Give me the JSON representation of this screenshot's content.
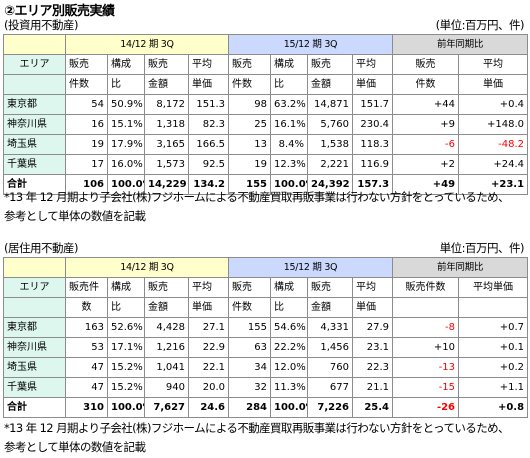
{
  "title": "②エリア別販売実績",
  "unit_label": "(単位:百万円、件)",
  "unit_label2": "単位:百万円、件)",
  "sections": [
    {
      "subtitle": "(投資用不動産)",
      "period_cur": "14/12 期 3Q",
      "period_prev": "15/12 期 3Q",
      "yoy": "前年同期比",
      "area_label": "エリア",
      "cols_cur": [
        [
          "販売",
          "件数"
        ],
        [
          "構成",
          "比"
        ],
        [
          "販売",
          "金額"
        ],
        [
          "平均",
          "単価"
        ]
      ],
      "cols_prev": [
        [
          "販売",
          "件数"
        ],
        [
          "構成",
          "比"
        ],
        [
          "販売",
          "金額"
        ],
        [
          "平均",
          "単価"
        ]
      ],
      "cols_yoy": [
        [
          "販売",
          "件数"
        ],
        [
          "平均",
          "単価"
        ]
      ],
      "rows": [
        {
          "area": "東京都",
          "a": "54",
          "b": "50.9%",
          "c": "8,172",
          "d": "151.3",
          "e": "98",
          "f": "63.2%",
          "g": "14,871",
          "h": "151.7",
          "i": "+44",
          "j": "+0.4",
          "i_red": false,
          "j_red": false
        },
        {
          "area": "神奈川県",
          "a": "16",
          "b": "15.1%",
          "c": "1,318",
          "d": "82.3",
          "e": "25",
          "f": "16.1%",
          "g": "5,760",
          "h": "230.4",
          "i": "+9",
          "j": "+148.0",
          "i_red": false,
          "j_red": false
        },
        {
          "area": "埼玉県",
          "a": "19",
          "b": "17.9%",
          "c": "3,165",
          "d": "166.5",
          "e": "13",
          "f": "8.4%",
          "g": "1,538",
          "h": "118.3",
          "i": "-6",
          "j": "-48.2",
          "i_red": true,
          "j_red": true
        },
        {
          "area": "千葉県",
          "a": "17",
          "b": "16.0%",
          "c": "1,573",
          "d": "92.5",
          "e": "19",
          "f": "12.3%",
          "g": "2,221",
          "h": "116.9",
          "i": "+2",
          "j": "+24.4",
          "i_red": false,
          "j_red": false
        }
      ],
      "total": {
        "area": "合計",
        "a": "106",
        "b": "100.0%",
        "c": "14,229",
        "d": "134.2",
        "e": "155",
        "f": "100.0%",
        "g": "24,392",
        "h": "157.3",
        "i": "+49",
        "j": "+23.1"
      },
      "note1": "*13 年 12 月期より子会社(株)フジホームによる不動産買取再販事業は行わない方針をとっているため、",
      "note2": "参考として単体の数値を記載"
    },
    {
      "subtitle": "(居住用不動産)",
      "period_cur": "14/12 期 3Q",
      "period_prev": "15/12 期 3Q",
      "yoy": "前年同期比",
      "area_label": "エリア",
      "cols_cur": [
        [
          "販売件",
          "数"
        ],
        [
          "構成",
          "比"
        ],
        [
          "販売",
          "金額"
        ],
        [
          "平均",
          "単価"
        ]
      ],
      "cols_prev": [
        [
          "販売",
          "件数"
        ],
        [
          "構成",
          "比"
        ],
        [
          "販売",
          "金額"
        ],
        [
          "平均",
          "単価"
        ]
      ],
      "cols_yoy": [
        [
          "販売件数",
          ""
        ],
        [
          "平均単価",
          ""
        ]
      ],
      "rows": [
        {
          "area": "東京都",
          "a": "163",
          "b": "52.6%",
          "c": "4,428",
          "d": "27.1",
          "e": "155",
          "f": "54.6%",
          "g": "4,331",
          "h": "27.9",
          "i": "-8",
          "j": "+0.7",
          "i_red": true,
          "j_red": false
        },
        {
          "area": "神奈川県",
          "a": "53",
          "b": "17.1%",
          "c": "1,216",
          "d": "22.9",
          "e": "63",
          "f": "22.2%",
          "g": "1,456",
          "h": "23.1",
          "i": "+10",
          "j": "+0.1",
          "i_red": false,
          "j_red": false
        },
        {
          "area": "埼玉県",
          "a": "47",
          "b": "15.2%",
          "c": "1,041",
          "d": "22.1",
          "e": "34",
          "f": "12.0%",
          "g": "760",
          "h": "22.3",
          "i": "-13",
          "j": "+0.2",
          "i_red": true,
          "j_red": false
        },
        {
          "area": "千葉県",
          "a": "47",
          "b": "15.2%",
          "c": "940",
          "d": "20.0",
          "e": "32",
          "f": "11.3%",
          "g": "677",
          "h": "21.1",
          "i": "-15",
          "j": "+1.1",
          "i_red": true,
          "j_red": false
        }
      ],
      "total": {
        "area": "合計",
        "a": "310",
        "b": "100.0%",
        "c": "7,627",
        "d": "24.6",
        "e": "284",
        "f": "100.0%",
        "g": "7,226",
        "h": "25.4",
        "i": "-26",
        "j": "+0.8",
        "i_red": true
      },
      "note1": "*13 年 12 月期より子会社(株)フジホームによる不動産買取再販事業は行わない方針をとっているため、",
      "note2": "参考として単体の数値を記載"
    }
  ]
}
